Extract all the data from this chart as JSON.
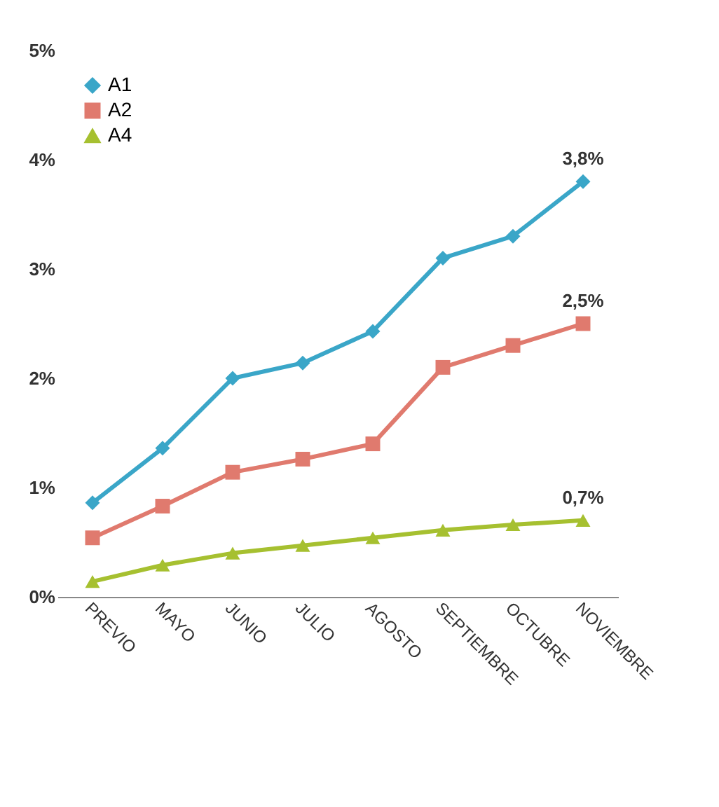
{
  "chart_data": {
    "type": "line",
    "categories": [
      "PREVIO",
      "MAYO",
      "JUNIO",
      "JULIO",
      "AGOSTO",
      "SEPTIEMBRE",
      "OCTUBRE",
      "NOVIEMBRE"
    ],
    "series": [
      {
        "name": "A1",
        "color": "#3aa6c8",
        "marker": "diamond",
        "values": [
          0.86,
          1.36,
          2.0,
          2.14,
          2.43,
          3.1,
          3.3,
          3.8
        ],
        "value_labels": [
          null,
          null,
          null,
          null,
          null,
          null,
          null,
          "3,8%"
        ]
      },
      {
        "name": "A2",
        "color": "#e07a6e",
        "marker": "square",
        "values": [
          0.54,
          0.83,
          1.14,
          1.26,
          1.4,
          2.1,
          2.3,
          2.5
        ],
        "value_labels": [
          null,
          null,
          null,
          null,
          null,
          null,
          null,
          "2,5%"
        ]
      },
      {
        "name": "A4",
        "color": "#a6c030",
        "marker": "triangle",
        "values": [
          0.14,
          0.29,
          0.4,
          0.47,
          0.54,
          0.61,
          0.66,
          0.7
        ],
        "value_labels": [
          null,
          null,
          null,
          null,
          null,
          null,
          null,
          "0,7%"
        ]
      }
    ],
    "ylim": [
      0,
      5
    ],
    "yticks": [
      {
        "value": 0,
        "label": "0%"
      },
      {
        "value": 1,
        "label": "1%"
      },
      {
        "value": 2,
        "label": "2%"
      },
      {
        "value": 3,
        "label": "3%"
      },
      {
        "value": 4,
        "label": "4%"
      },
      {
        "value": 5,
        "label": "5%"
      }
    ],
    "grid": false,
    "legend": "top left",
    "line_style": "solid"
  }
}
